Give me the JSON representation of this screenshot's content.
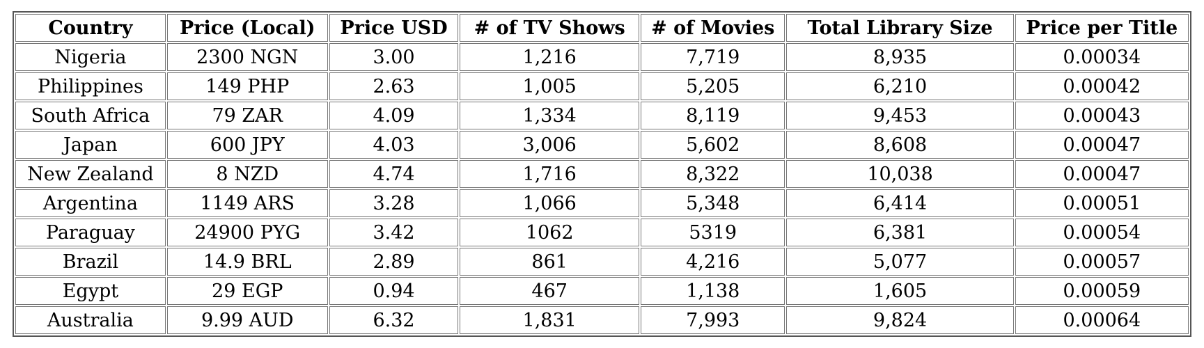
{
  "chart_data": {
    "type": "table",
    "columns": [
      "Country",
      "Price (Local)",
      "Price USD",
      "# of TV Shows",
      "# of Movies",
      "Total Library Size",
      "Price per Title"
    ],
    "rows": [
      [
        "Nigeria",
        "2300 NGN",
        "3.00",
        "1,216",
        "7,719",
        "8,935",
        "0.00034"
      ],
      [
        "Philippines",
        "149 PHP",
        "2.63",
        "1,005",
        "5,205",
        "6,210",
        "0.00042"
      ],
      [
        "South Africa",
        "79 ZAR",
        "4.09",
        "1,334",
        "8,119",
        "9,453",
        "0.00043"
      ],
      [
        "Japan",
        "600 JPY",
        "4.03",
        "3,006",
        "5,602",
        "8,608",
        "0.00047"
      ],
      [
        "New Zealand",
        "8 NZD",
        "4.74",
        "1,716",
        "8,322",
        "10,038",
        "0.00047"
      ],
      [
        "Argentina",
        "1149 ARS",
        "3.28",
        "1,066",
        "5,348",
        "6,414",
        "0.00051"
      ],
      [
        "Paraguay",
        "24900 PYG",
        "3.42",
        "1062",
        "5319",
        "6,381",
        "0.00054"
      ],
      [
        "Brazil",
        "14.9 BRL",
        "2.89",
        "861",
        "4,216",
        "5,077",
        "0.00057"
      ],
      [
        "Egypt",
        "29 EGP",
        "0.94",
        "467",
        "1,138",
        "1,605",
        "0.00059"
      ],
      [
        "Australia",
        "9.99 AUD",
        "6.32",
        "1,831",
        "7,993",
        "9,824",
        "0.00064"
      ]
    ],
    "layout": {
      "grid": "double-line table borders",
      "text_align": "center",
      "header_bold": true,
      "border_color_hex": "#6e6e6e",
      "text_color_hex": "#000000",
      "background_hex": "#ffffff"
    }
  }
}
